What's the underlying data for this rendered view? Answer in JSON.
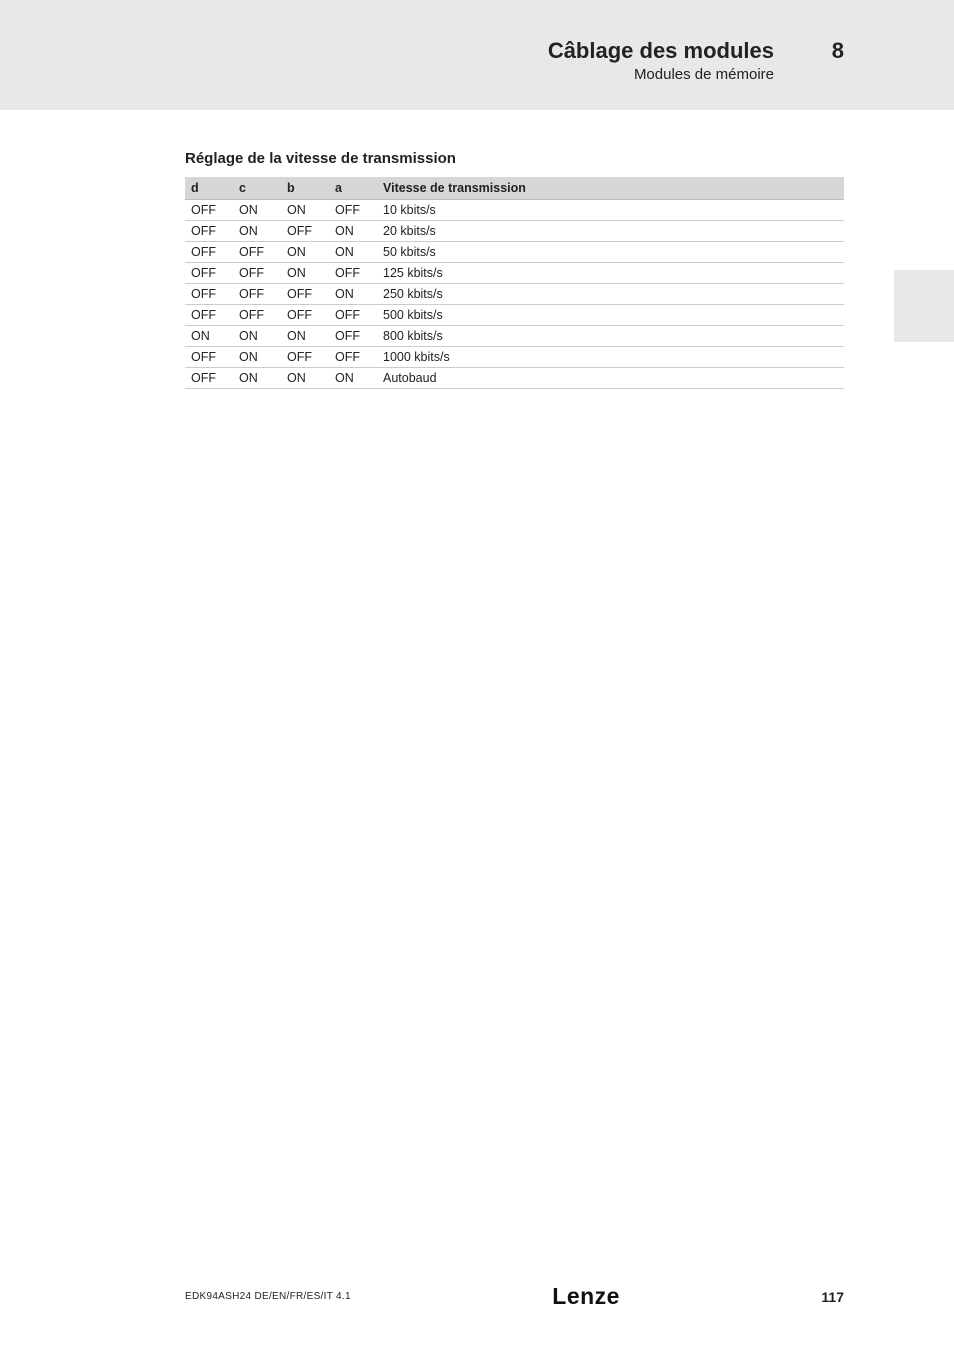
{
  "header": {
    "title": "Câblage des modules",
    "subtitle": "Modules de mémoire",
    "chapter": "8"
  },
  "section": {
    "title": "Réglage de la vitesse de transmission"
  },
  "table": {
    "columns": [
      "d",
      "c",
      "b",
      "a",
      "Vitesse de transmission"
    ],
    "rows": [
      [
        "OFF",
        "ON",
        "ON",
        "OFF",
        "10 kbits/s"
      ],
      [
        "OFF",
        "ON",
        "OFF",
        "ON",
        "20 kbits/s"
      ],
      [
        "OFF",
        "OFF",
        "ON",
        "ON",
        "50 kbits/s"
      ],
      [
        "OFF",
        "OFF",
        "ON",
        "OFF",
        "125 kbits/s"
      ],
      [
        "OFF",
        "OFF",
        "OFF",
        "ON",
        "250 kbits/s"
      ],
      [
        "OFF",
        "OFF",
        "OFF",
        "OFF",
        "500 kbits/s"
      ],
      [
        "ON",
        "ON",
        "ON",
        "OFF",
        "800 kbits/s"
      ],
      [
        "OFF",
        "ON",
        "OFF",
        "OFF",
        "1000 kbits/s"
      ],
      [
        "OFF",
        "ON",
        "ON",
        "ON",
        "Autobaud"
      ]
    ],
    "header_bg": "#d6d6d6",
    "border_color": "#cccccc",
    "fontsize": 12.5
  },
  "footer": {
    "doc_ref": "EDK94ASH24   DE/EN/FR/ES/IT   4.1",
    "logo": "Lenze",
    "page": "117"
  },
  "colors": {
    "band_bg": "#e8e8e8",
    "text": "#222222"
  }
}
